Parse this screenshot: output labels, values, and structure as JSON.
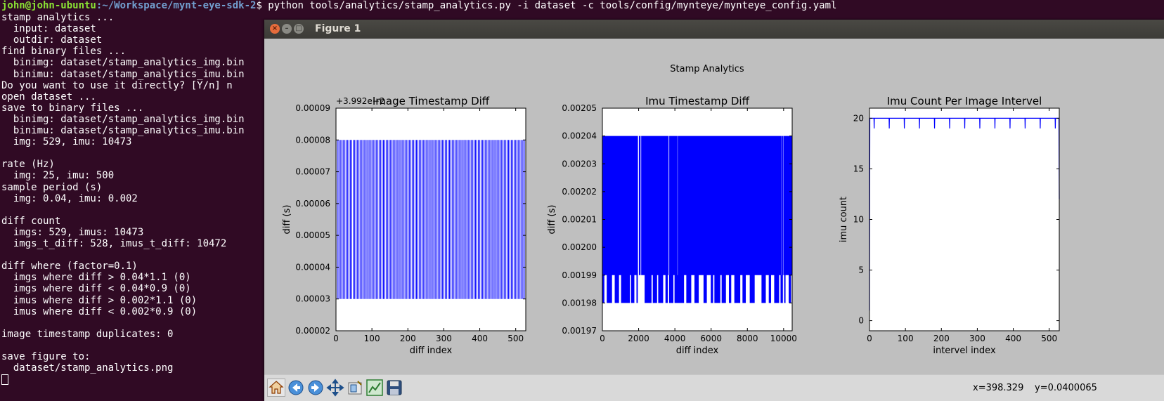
{
  "terminal": {
    "prompt": {
      "user_host": "john@john-ubuntu",
      "path": ":~/Workspace/mynt-eye-sdk-2",
      "command": "$ python tools/analytics/stamp_analytics.py -i dataset -c tools/config/mynteye/mynteye_config.yaml"
    },
    "lines": [
      "stamp analytics ...",
      "  input: dataset",
      "  outdir: dataset",
      "find binary files ...",
      "  binimg: dataset/stamp_analytics_img.bin",
      "  binimu: dataset/stamp_analytics_imu.bin",
      "Do you want to use it directly? [Y/n] n",
      "open dataset ...",
      "save to binary files ...",
      "  binimg: dataset/stamp_analytics_img.bin",
      "  binimu: dataset/stamp_analytics_imu.bin",
      "  img: 529, imu: 10473",
      "",
      "rate (Hz)",
      "  img: 25, imu: 500",
      "sample period (s)",
      "  img: 0.04, imu: 0.002",
      "",
      "diff count",
      "  imgs: 529, imus: 10473",
      "  imgs_t_diff: 528, imus_t_diff: 10472",
      "",
      "diff where (factor=0.1)",
      "  imgs where diff > 0.04*1.1 (0)",
      "  imgs where diff < 0.04*0.9 (0)",
      "  imus where diff > 0.002*1.1 (0)",
      "  imus where diff < 0.002*0.9 (0)",
      "",
      "image timestamp duplicates: 0",
      "",
      "save figure to:",
      "  dataset/stamp_analytics.png"
    ]
  },
  "window": {
    "title": "Figure 1",
    "buttons": [
      "close",
      "minimize",
      "maximize"
    ]
  },
  "figure": {
    "suptitle": "Stamp Analytics",
    "colors": {
      "line": "#0000ff",
      "background": "#bfbfbf",
      "axes": "#ffffff"
    }
  },
  "toolbar": {
    "icons": [
      "home-icon",
      "back-icon",
      "forward-icon",
      "pan-icon",
      "configure-subplots-icon",
      "edit-axes-icon",
      "save-icon"
    ],
    "coord_x": "x=398.329",
    "coord_y": "y=0.0400065"
  },
  "chart_data": [
    {
      "type": "line",
      "title": "Image Timestamp Diff",
      "xlabel": "diff index",
      "ylabel": "diff (s)",
      "offset_text": "+3.992e−2",
      "xlim": [
        0,
        528
      ],
      "ylim": [
        2e-05,
        9e-05
      ],
      "xticks": [
        0,
        100,
        200,
        300,
        400,
        500
      ],
      "xtick_labels": [
        "0",
        "100",
        "200",
        "300",
        "400",
        "500"
      ],
      "yticks": [
        2e-05,
        3e-05,
        4e-05,
        5e-05,
        6e-05,
        7e-05,
        8e-05,
        9e-05
      ],
      "ytick_labels": [
        "0.00002",
        "0.00003",
        "0.00004",
        "0.00005",
        "0.00006",
        "0.00007",
        "0.00008",
        "0.00009"
      ],
      "series": [
        {
          "pattern": "alternating",
          "high": 8e-05,
          "low": 3e-05,
          "n_points": 528,
          "period": 4
        }
      ]
    },
    {
      "type": "line",
      "title": "Imu Timestamp Diff",
      "xlabel": "diff index",
      "ylabel": "diff (s)",
      "xlim": [
        0,
        10472
      ],
      "ylim": [
        0.00197,
        0.00205
      ],
      "xticks": [
        0,
        2000,
        4000,
        6000,
        8000,
        10000
      ],
      "xtick_labels": [
        "0",
        "2000",
        "4000",
        "6000",
        "8000",
        "10000"
      ],
      "yticks": [
        0.00197,
        0.00198,
        0.00199,
        0.002,
        0.00201,
        0.00202,
        0.00203,
        0.00204,
        0.00205
      ],
      "ytick_labels": [
        "0.00197",
        "0.00198",
        "0.00199",
        "0.00200",
        "0.00201",
        "0.00202",
        "0.00203",
        "0.00204",
        "0.00205"
      ],
      "series": [
        {
          "pattern": "dense_band",
          "band_high": 0.00204,
          "band_low": 0.00199,
          "drop_value": 0.00198,
          "n_points": 10472,
          "drop_ranges": [
            [
              0,
              100
            ],
            [
              260,
              520
            ],
            [
              700,
              900
            ],
            [
              1050,
              1500
            ],
            [
              1600,
              1750
            ],
            [
              1900,
              1950
            ],
            [
              2350,
              2700
            ],
            [
              2800,
              3000
            ],
            [
              3100,
              3350
            ],
            [
              3500,
              3600
            ],
            [
              3700,
              3900
            ],
            [
              4000,
              4500
            ],
            [
              4650,
              4900
            ],
            [
              5100,
              5300
            ],
            [
              5600,
              5750
            ],
            [
              6000,
              6100
            ],
            [
              6200,
              6500
            ],
            [
              6600,
              6800
            ],
            [
              7000,
              7100
            ],
            [
              7300,
              7600
            ],
            [
              7750,
              7900
            ],
            [
              8150,
              8400
            ],
            [
              8800,
              9000
            ],
            [
              9200,
              9300
            ],
            [
              9500,
              9750
            ],
            [
              9850,
              9950
            ],
            [
              10050,
              10100
            ],
            [
              10300,
              10400
            ]
          ],
          "gap_ranges": [
            [
              1950,
              2030
            ],
            [
              2100,
              2150
            ],
            [
              3650,
              3700
            ],
            [
              4130,
              4170
            ],
            [
              9880,
              9910
            ],
            [
              9990,
              10010
            ]
          ]
        }
      ]
    },
    {
      "type": "line",
      "title": "Imu Count Per Image Intervel",
      "xlabel": "intervel index",
      "ylabel": "imu count",
      "xlim": [
        0,
        528
      ],
      "ylim": [
        -1,
        21
      ],
      "xticks": [
        0,
        100,
        200,
        300,
        400,
        500
      ],
      "xtick_labels": [
        "0",
        "100",
        "200",
        "300",
        "400",
        "500"
      ],
      "yticks": [
        0,
        5,
        10,
        15,
        20
      ],
      "ytick_labels": [
        "0",
        "5",
        "10",
        "15",
        "20"
      ],
      "series": [
        {
          "pattern": "count",
          "start": 1,
          "value": 20,
          "dip_value": 19,
          "dips": [
            13,
            55,
            97,
            139,
            181,
            223,
            265,
            307,
            349,
            391,
            433,
            475,
            517
          ],
          "end_value": 12
        }
      ]
    }
  ]
}
